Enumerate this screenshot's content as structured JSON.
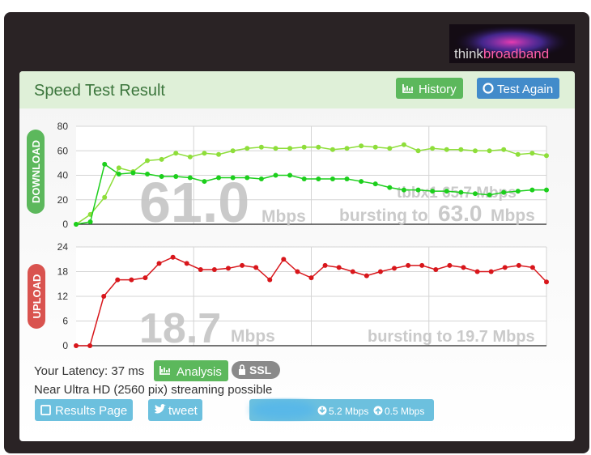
{
  "logo": {
    "think": "think",
    "broadband": "broadband"
  },
  "header": {
    "title": "Speed Test Result",
    "history": "History",
    "test_again": "Test Again"
  },
  "chart_data": [
    {
      "type": "line",
      "side_label": "DOWNLOAD",
      "categories": [
        null,
        null,
        null,
        null,
        null,
        null,
        null,
        null,
        null,
        null,
        null,
        null,
        null,
        null,
        null,
        null,
        null,
        null,
        null,
        null,
        null,
        null,
        null,
        null,
        null,
        null,
        null,
        null,
        null,
        null,
        null,
        null,
        null,
        null
      ],
      "series": [
        {
          "color": "#8ede3a",
          "values": [
            0,
            8,
            22,
            46,
            43,
            52,
            53,
            58,
            55,
            58,
            57,
            60,
            62,
            63,
            62,
            62,
            63,
            63,
            61,
            62,
            64,
            63,
            62,
            65,
            60,
            62,
            61,
            61,
            60,
            60,
            61,
            57,
            58,
            56
          ]
        },
        {
          "color": "#1ccf1c",
          "values": [
            0,
            2,
            49,
            41,
            42,
            41,
            39,
            39,
            38,
            35,
            38,
            38,
            38,
            37,
            40,
            40,
            37,
            37,
            37,
            37,
            35,
            33,
            30,
            28,
            28,
            27,
            27,
            26,
            25,
            24,
            26,
            27,
            28,
            28
          ]
        }
      ],
      "ylim": [
        0,
        80
      ],
      "yticks": [
        0,
        20,
        40,
        60,
        80
      ],
      "grid": true,
      "annotations": {
        "speed": "61.0",
        "unit": "Mbps",
        "bursting_label": "bursting to",
        "bursting_speed": "63.0",
        "bursting_unit": "Mbps",
        "server": "tbbx1 65.7 Mbps"
      }
    },
    {
      "type": "line",
      "side_label": "UPLOAD",
      "categories": [
        null,
        null,
        null,
        null,
        null,
        null,
        null,
        null,
        null,
        null,
        null,
        null,
        null,
        null,
        null,
        null,
        null,
        null,
        null,
        null,
        null,
        null,
        null,
        null,
        null,
        null,
        null,
        null,
        null,
        null,
        null,
        null,
        null,
        null,
        null
      ],
      "series": [
        {
          "color": "#d8161b",
          "values": [
            0,
            0,
            12,
            16,
            16,
            16.5,
            20,
            21.5,
            20,
            18.5,
            18.5,
            18.8,
            19.5,
            19,
            16,
            21,
            18,
            16.5,
            19.5,
            19,
            18,
            17,
            18,
            18.8,
            19.5,
            19.5,
            18.5,
            19.5,
            19,
            18,
            18,
            19,
            19.5,
            19,
            15.5
          ]
        }
      ],
      "ylim": [
        0,
        24
      ],
      "yticks": [
        0,
        6,
        12,
        18,
        24
      ],
      "grid": true,
      "annotations": {
        "speed": "18.7",
        "unit": "Mbps",
        "bursting": "bursting to 19.7 Mbps"
      }
    }
  ],
  "footer": {
    "latency": "Your Latency: 37 ms",
    "analysis": "Analysis",
    "ssl": "SSL",
    "streaming": "Near Ultra HD (2560 pix) streaming possible",
    "results_page": "Results Page",
    "tweet": "tweet",
    "download_speed": "5.2 Mbps",
    "upload_speed": "0.5 Mbps"
  }
}
